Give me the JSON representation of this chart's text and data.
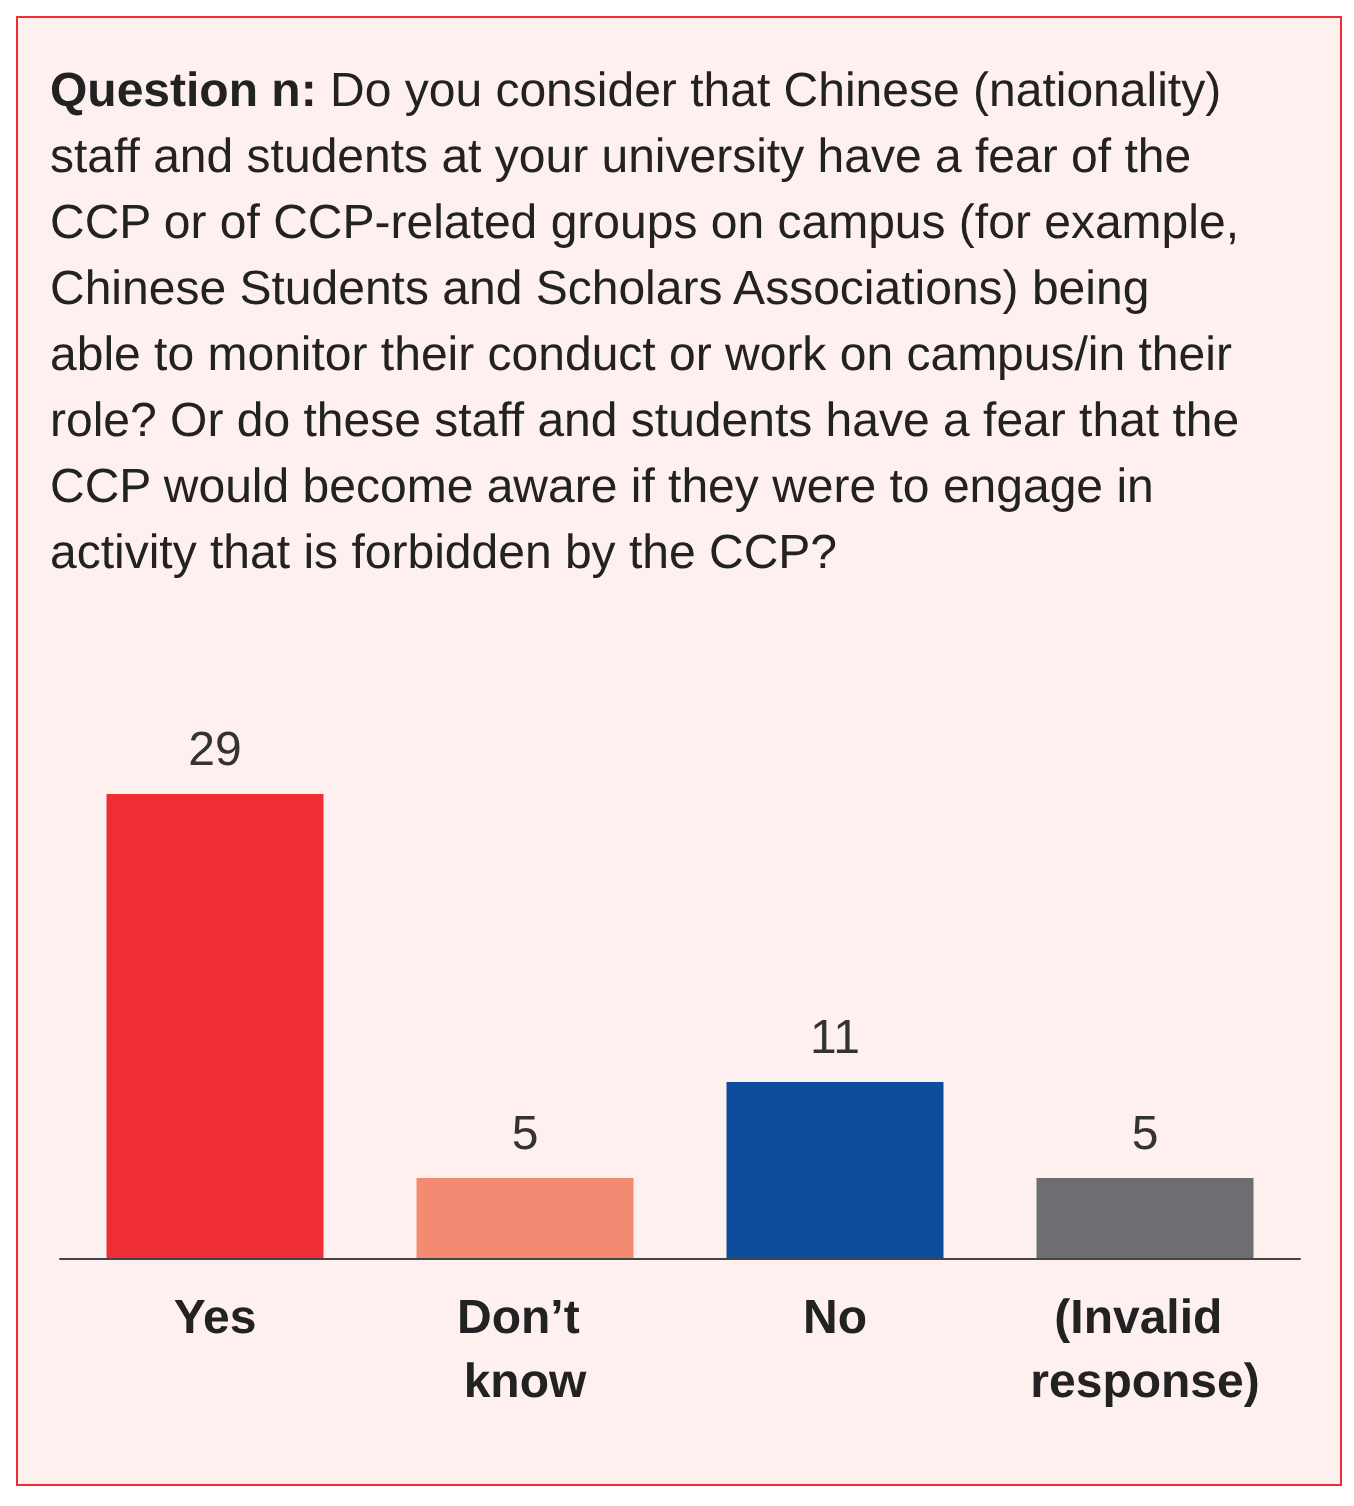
{
  "chart_data": {
    "type": "bar",
    "title": "Question n: Do you consider that Chinese (nationality) staff and students at your university have a fear of the CCP or of CCP-related groups on campus (for example, Chinese Students and Scholars Associations) being able to monitor their conduct or work on campus/in their role? Or do these staff and students have a fear that the CCP would become aware if they were to engage in activity that is forbidden by the CCP?",
    "categories": [
      "Yes",
      "Don’t know",
      "No",
      "(Invalid response)"
    ],
    "values": [
      29,
      5,
      11,
      5
    ],
    "colors": [
      "#ee2d34",
      "#f48a72",
      "#0c4e9b",
      "#6d6e71"
    ],
    "data_labels": true
  }
}
